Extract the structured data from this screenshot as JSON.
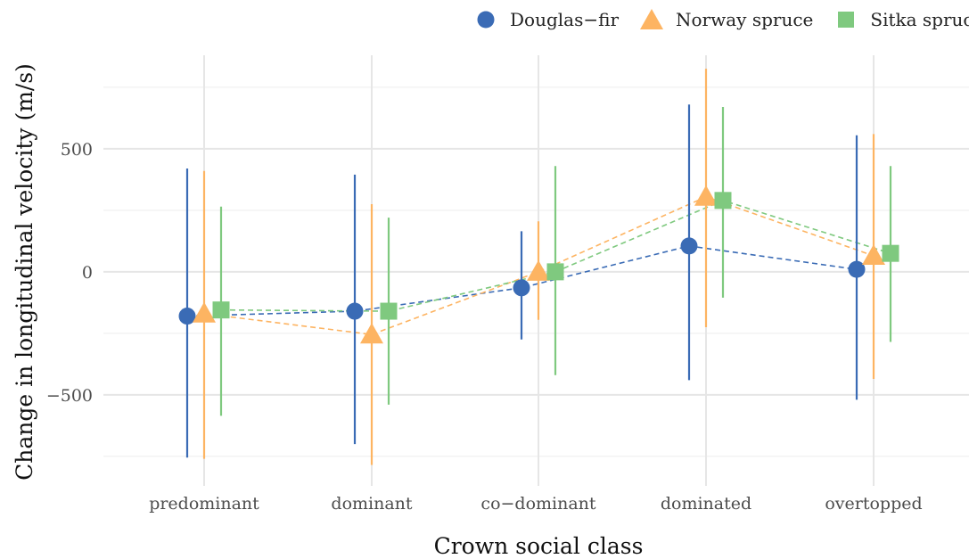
{
  "chart_data": {
    "type": "scatter",
    "xlabel": "Crown social class",
    "ylabel": "Change in longitudinal velocity (m/s)",
    "categories": [
      "predominant",
      "dominant",
      "co−dominant",
      "dominated",
      "overtopped"
    ],
    "ylim": [
      -870,
      880
    ],
    "yticks": [
      -500,
      0,
      500
    ],
    "ytick_labels": [
      "−500",
      "0",
      "500"
    ],
    "grid": true,
    "legend_position": "top",
    "error_bars": true,
    "connecting_lines": "dashed",
    "series": [
      {
        "name": "Douglas−fir",
        "color": "#3a6bb5",
        "marker": "circle",
        "values": [
          -180,
          -160,
          -65,
          105,
          10
        ],
        "lower": [
          -755,
          -700,
          -275,
          -440,
          -520
        ],
        "upper": [
          420,
          395,
          165,
          680,
          555
        ]
      },
      {
        "name": "Norway spruce",
        "color": "#fdb462",
        "marker": "triangle",
        "values": [
          -170,
          -255,
          0,
          305,
          65
        ],
        "lower": [
          -760,
          -785,
          -195,
          -225,
          -435
        ],
        "upper": [
          410,
          275,
          205,
          825,
          560
        ]
      },
      {
        "name": "Sitka spruce",
        "color": "#7fc97f",
        "marker": "square",
        "values": [
          -155,
          -160,
          0,
          290,
          75
        ],
        "lower": [
          -585,
          -540,
          -420,
          -105,
          -285
        ],
        "upper": [
          265,
          220,
          430,
          670,
          430
        ]
      }
    ]
  }
}
